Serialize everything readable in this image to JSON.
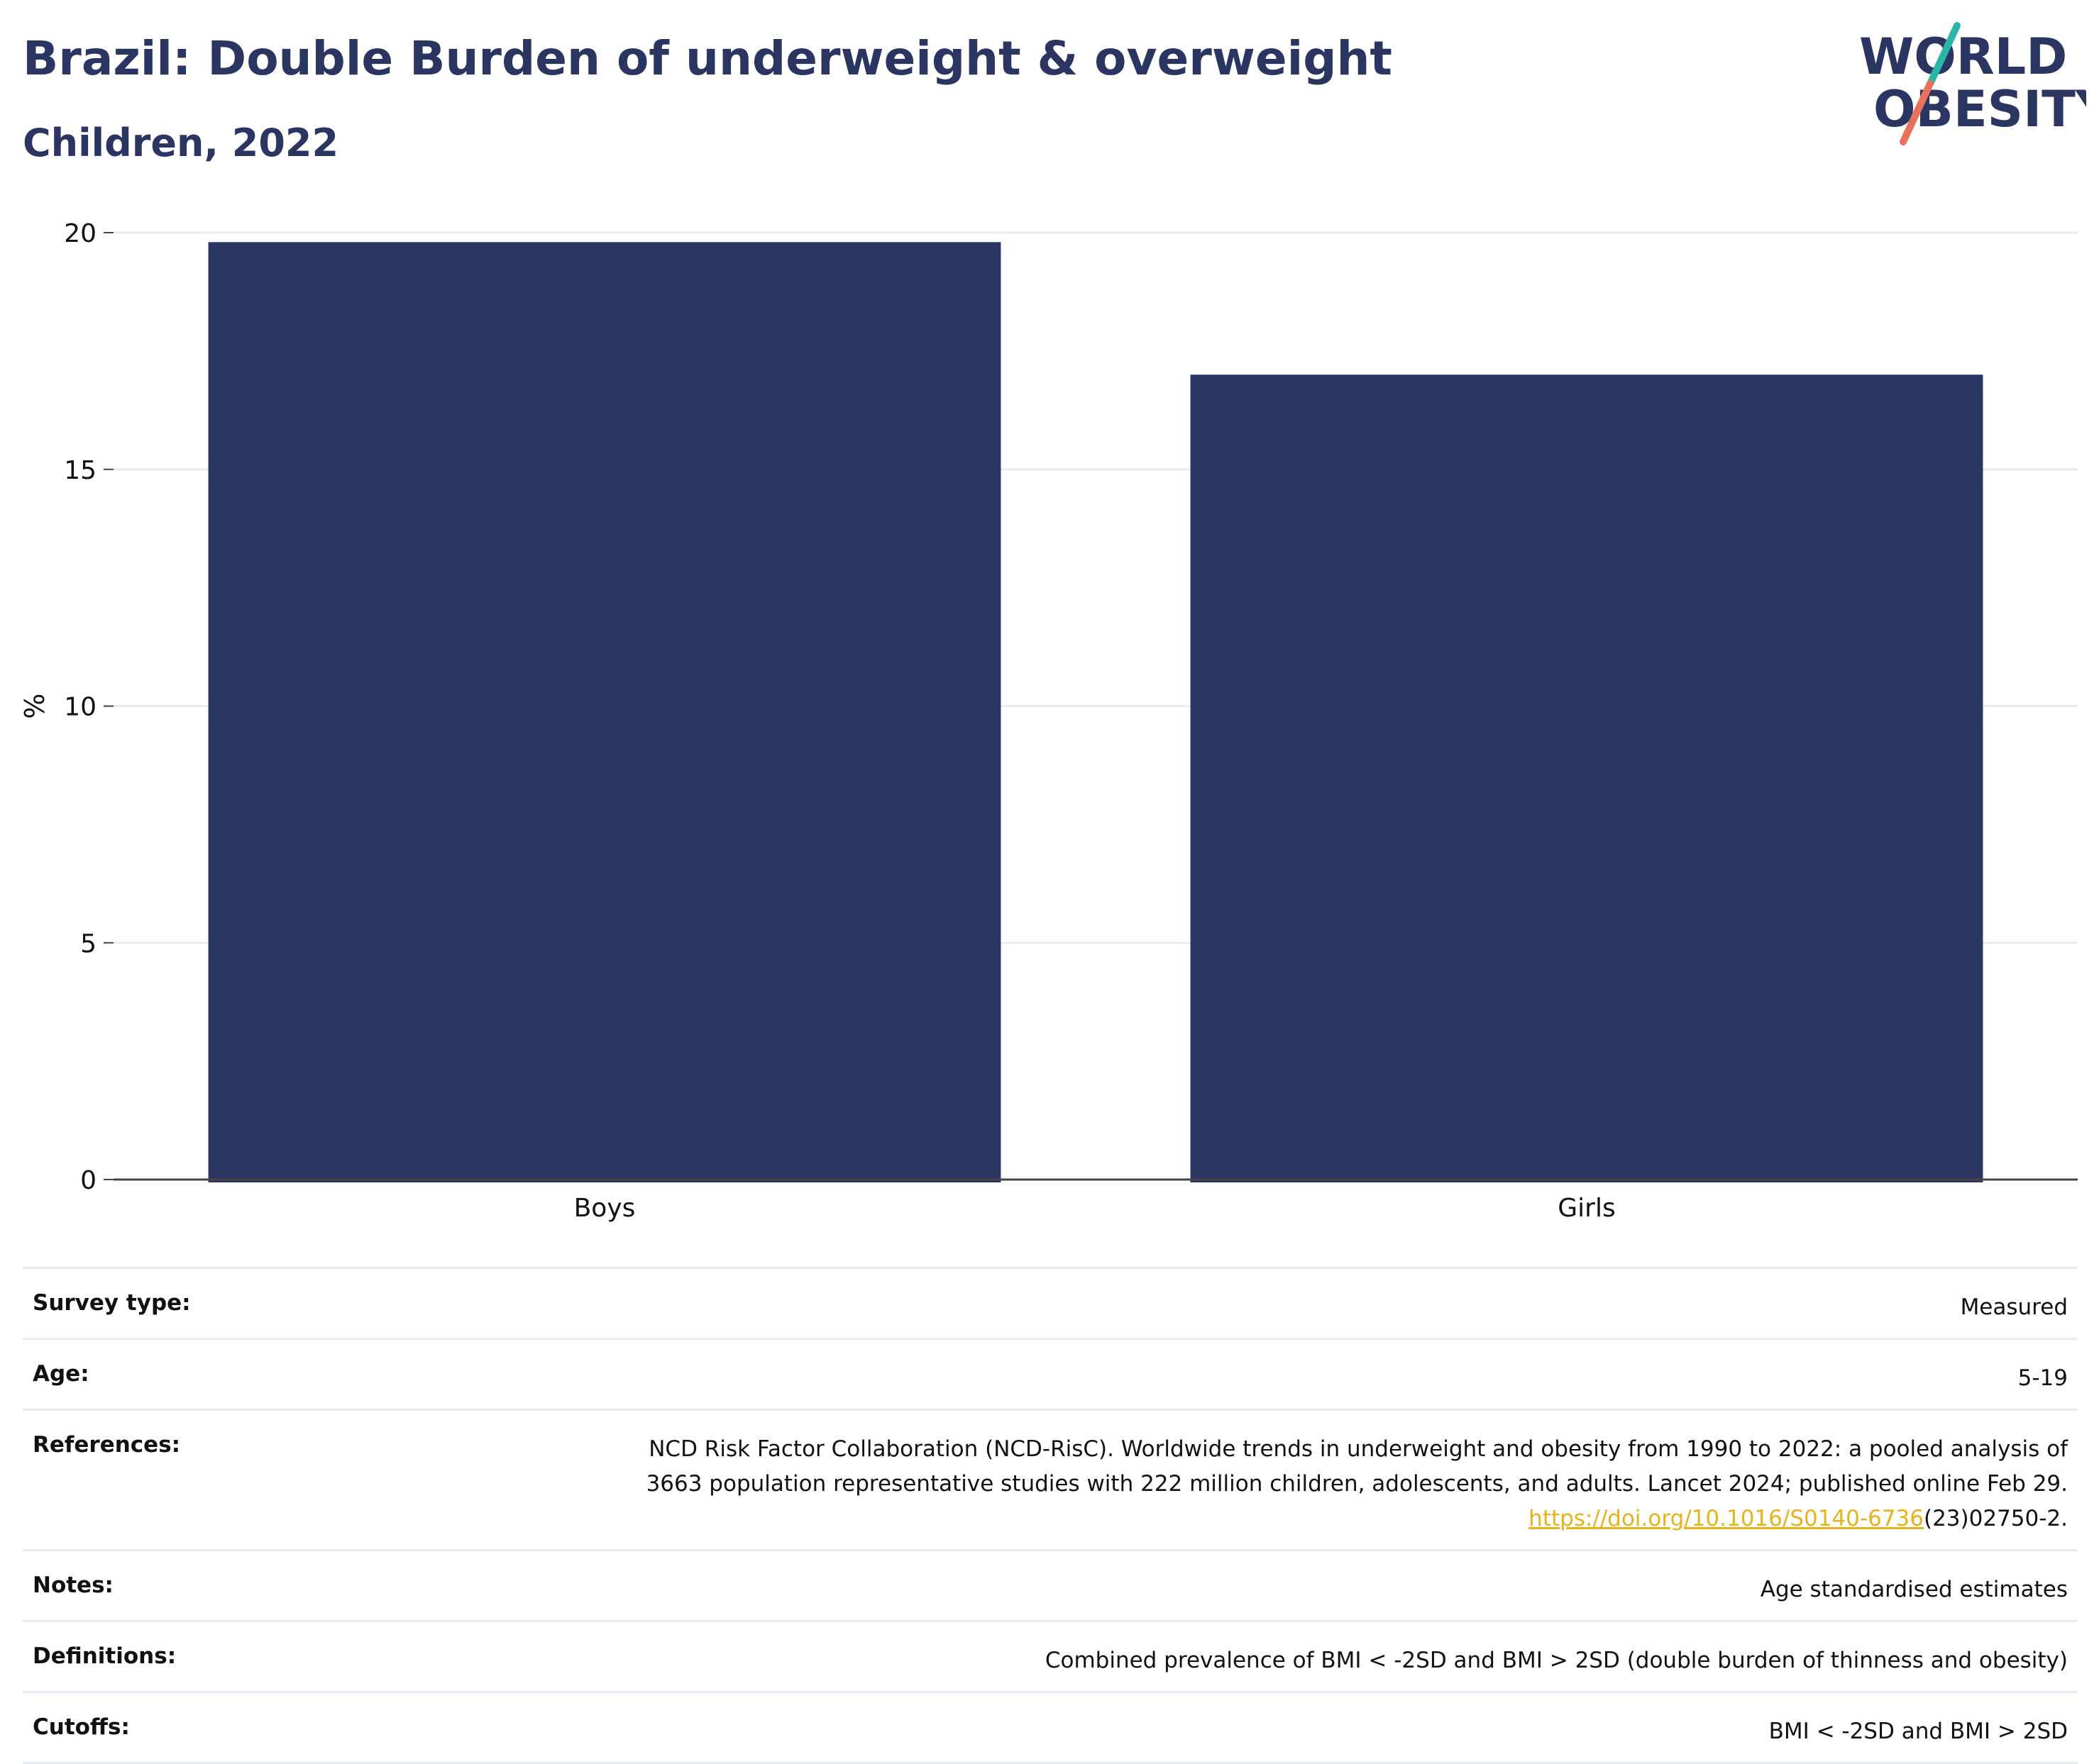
{
  "header": {
    "title": "Brazil: Double Burden of underweight & overweight",
    "subtitle": "Children, 2022",
    "logo_line1": "WORLD",
    "logo_line2": "OBESITY"
  },
  "colors": {
    "bar": "#2b3562",
    "title": "#2b3562",
    "link": "#e8b21c",
    "logo_teal": "#2bb5a8",
    "logo_coral": "#e8725c"
  },
  "chart_data": {
    "type": "bar",
    "title": "Brazil: Double Burden of underweight & overweight",
    "subtitle": "Children, 2022",
    "categories": [
      "Boys",
      "Girls"
    ],
    "values": [
      19.8,
      17.0
    ],
    "xlabel": "",
    "ylabel": "%",
    "ylim": [
      0,
      20
    ],
    "yticks": [
      0,
      5,
      10,
      15,
      20
    ],
    "grid": true,
    "legend": "none"
  },
  "info": {
    "survey_type_label": "Survey type:",
    "survey_type_value": "Measured",
    "age_label": "Age:",
    "age_value": "5-19",
    "references_label": "References:",
    "references_line1": "NCD Risk Factor Collaboration (NCD-RisC). Worldwide trends in underweight and obesity from 1990 to 2022: a pooled analysis of",
    "references_line2": "3663 population representative studies with 222 million children, adolescents, and adults. Lancet 2024; published online Feb 29.",
    "references_link": "https://doi.org/10.1016/S0140-6736",
    "references_link_suffix": "(23)02750-2.",
    "notes_label": "Notes:",
    "notes_value": "Age standardised estimates",
    "definitions_label": "Definitions:",
    "definitions_value": "Combined prevalence of BMI < -2SD and BMI > 2SD (double burden of thinness and obesity)",
    "cutoffs_label": "Cutoffs:",
    "cutoffs_value": "BMI < -2SD and BMI > 2SD"
  }
}
